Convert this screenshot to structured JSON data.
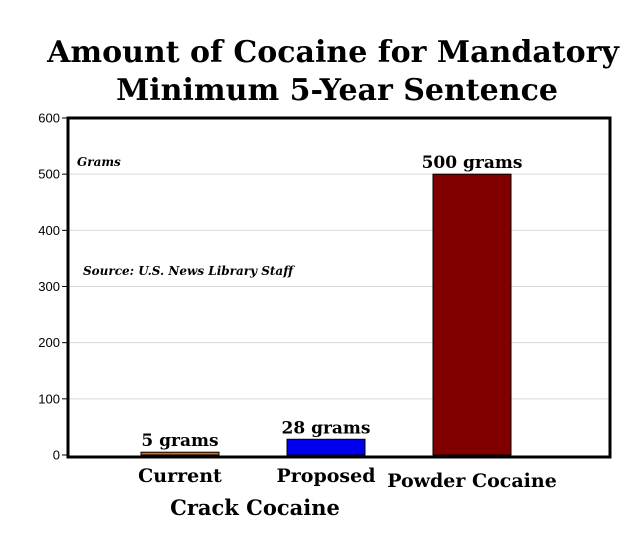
{
  "chart_data": {
    "type": "bar",
    "title_lines": [
      "Amount of Cocaine for Mandatory",
      "Minimum 5-Year Sentence"
    ],
    "ylabel": "Grams",
    "source": "Source: U.S. News Library Staff",
    "ylim": [
      0,
      600
    ],
    "yticks": [
      "0",
      "100",
      "200",
      "300",
      "400",
      "500",
      "600"
    ],
    "grid": true,
    "categories": [
      "Current",
      "Proposed",
      "Powder Cocaine"
    ],
    "values": [
      5,
      28,
      500
    ],
    "data_labels": [
      "5 grams",
      "28 grams",
      "500 grams"
    ],
    "colors": [
      "#d2691e",
      "#0000ee",
      "#800000"
    ],
    "group_label": "Crack Cocaine"
  }
}
